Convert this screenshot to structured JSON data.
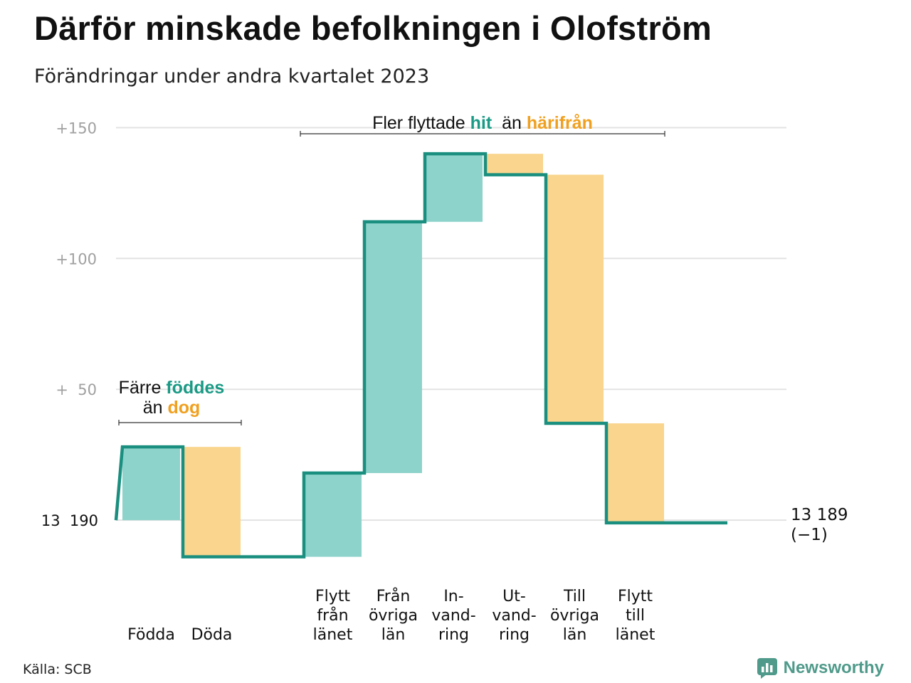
{
  "title": "Därför minskade befolkningen i Olofström",
  "subtitle": "Förändringar under andra kvartalet 2023",
  "source": "Källa: SCB",
  "brand": {
    "name": "Newsworthy",
    "icon": "newsworthy-logo-icon",
    "color": "#4f9a8a"
  },
  "colors": {
    "increase": "#8dd3cb",
    "decrease": "#f9d58e",
    "line": "#1a8f7f",
    "hit": "#1a9a85",
    "harifran": "#f0a020",
    "grid": "#e3e3e3",
    "tick": "#a0a0a0"
  },
  "chart_data": {
    "type": "waterfall",
    "start": {
      "label": "13  190",
      "value": 13190
    },
    "end": {
      "label": "13 189",
      "change_label": "(−1)",
      "value": 13189
    },
    "ylim": [
      -16,
      152
    ],
    "yticks": [
      {
        "value": 150,
        "label": "+150"
      },
      {
        "value": 100,
        "label": "+100"
      },
      {
        "value": 50,
        "label": "+  50"
      }
    ],
    "steps": [
      {
        "label": [
          "",
          "Födda"
        ],
        "delta": 28
      },
      {
        "label": [
          "",
          "Döda"
        ],
        "delta": -42
      },
      {
        "label": [
          "",
          ""
        ],
        "delta": 0
      },
      {
        "label": [
          "Flytt",
          "från",
          "länet"
        ],
        "delta": 32
      },
      {
        "label": [
          "Från",
          "övriga",
          "län"
        ],
        "delta": 96
      },
      {
        "label": [
          "In-",
          "vand-",
          "ring"
        ],
        "delta": 26
      },
      {
        "label": [
          "Ut-",
          "vand-",
          "ring"
        ],
        "delta": -8
      },
      {
        "label": [
          "Till",
          "övriga",
          "län"
        ],
        "delta": -95
      },
      {
        "label": [
          "Flytt",
          "till",
          "länet"
        ],
        "delta": -38
      },
      {
        "label": [
          "",
          ""
        ],
        "delta": 0
      }
    ],
    "annotations": [
      {
        "first_step": 0,
        "last_step": 1,
        "lines": [
          [
            {
              "text": "Färre ",
              "style": "plain"
            },
            {
              "text": "föddes",
              "style": "hit"
            }
          ],
          [
            {
              "text": "än ",
              "style": "plain"
            },
            {
              "text": "dog",
              "style": "harifran"
            }
          ]
        ]
      },
      {
        "first_step": 3,
        "last_step": 8,
        "lines": [
          [
            {
              "text": "Fler flyttade ",
              "style": "plain"
            },
            {
              "text": "hit",
              "style": "hit"
            },
            {
              "text": "  än ",
              "style": "plain"
            },
            {
              "text": "härifrån",
              "style": "harifran"
            }
          ]
        ]
      }
    ]
  }
}
